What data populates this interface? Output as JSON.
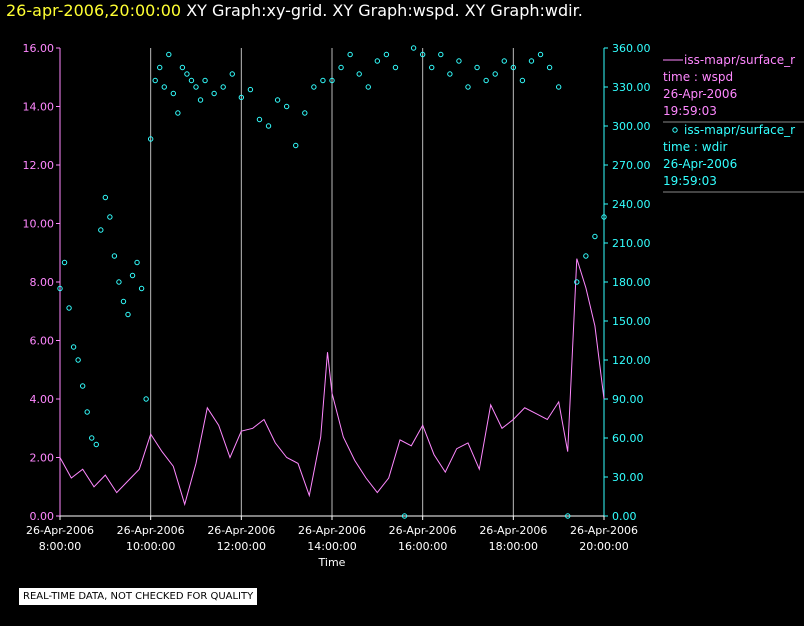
{
  "header": {
    "timestamp": "26-apr-2006,20:00:00",
    "graphs": "XY Graph:xy-grid.  XY Graph:wspd.  XY Graph:wdir."
  },
  "colors": {
    "wspd": "#ff88ff",
    "wdir": "#33ffff",
    "grid": "#bbbbbb",
    "axis_left": "#ff88ff",
    "axis_right": "#33ffff"
  },
  "legend": {
    "wspd": {
      "line1": "iss-mapr/surface_r",
      "line2": "time : wspd",
      "line3": "26-Apr-2006",
      "line4": "19:59:03"
    },
    "wdir": {
      "line1": "iss-mapr/surface_r",
      "line2": "time : wdir",
      "line3": "26-Apr-2006",
      "line4": "19:59:03"
    }
  },
  "footer": {
    "quality_note": "REAL-TIME DATA, NOT CHECKED FOR QUALITY"
  },
  "chart_data": {
    "type": "line",
    "xlabel": "Time",
    "x_ticks": [
      {
        "date": "26-Apr-2006",
        "time": "8:00:00",
        "h": 8
      },
      {
        "date": "26-Apr-2006",
        "time": "10:00:00",
        "h": 10
      },
      {
        "date": "26-Apr-2006",
        "time": "12:00:00",
        "h": 12
      },
      {
        "date": "26-Apr-2006",
        "time": "14:00:00",
        "h": 14
      },
      {
        "date": "26-Apr-2006",
        "time": "16:00:00",
        "h": 16
      },
      {
        "date": "26-Apr-2006",
        "time": "18:00:00",
        "h": 18
      },
      {
        "date": "26-Apr-2006",
        "time": "20:00:00",
        "h": 20
      }
    ],
    "xlim": [
      8,
      20
    ],
    "y_left": {
      "lim": [
        0,
        16
      ],
      "ticks": [
        "0.00",
        "2.00",
        "4.00",
        "6.00",
        "8.00",
        "10.00",
        "12.00",
        "14.00",
        "16.00"
      ]
    },
    "y_right": {
      "lim": [
        0,
        360
      ],
      "ticks": [
        "0.00",
        "30.00",
        "60.00",
        "90.00",
        "120.00",
        "150.00",
        "180.00",
        "210.00",
        "240.00",
        "270.00",
        "300.00",
        "330.00",
        "360.00"
      ]
    },
    "vertical_grid_hours": [
      10,
      12,
      14,
      16,
      18,
      20
    ],
    "series": [
      {
        "name": "wspd",
        "style": "line",
        "axis": "left",
        "x": [
          8.0,
          8.25,
          8.5,
          8.75,
          9.0,
          9.25,
          9.5,
          9.75,
          10.0,
          10.25,
          10.5,
          10.75,
          11.0,
          11.25,
          11.5,
          11.75,
          12.0,
          12.25,
          12.5,
          12.75,
          13.0,
          13.25,
          13.5,
          13.75,
          13.9,
          14.0,
          14.25,
          14.5,
          14.75,
          15.0,
          15.25,
          15.5,
          15.75,
          16.0,
          16.25,
          16.5,
          16.75,
          17.0,
          17.25,
          17.5,
          17.75,
          18.0,
          18.25,
          18.5,
          18.75,
          19.0,
          19.2,
          19.4,
          19.6,
          19.8,
          20.0
        ],
        "y": [
          2.0,
          1.3,
          1.6,
          1.0,
          1.4,
          0.8,
          1.2,
          1.6,
          2.8,
          2.2,
          1.7,
          0.4,
          1.8,
          3.7,
          3.1,
          2.0,
          2.9,
          3.0,
          3.3,
          2.5,
          2.0,
          1.8,
          0.7,
          2.7,
          5.6,
          4.2,
          2.7,
          1.9,
          1.3,
          0.8,
          1.3,
          2.6,
          2.4,
          3.1,
          2.1,
          1.5,
          2.3,
          2.5,
          1.6,
          3.8,
          3.0,
          3.3,
          3.7,
          3.5,
          3.3,
          3.9,
          2.2,
          8.8,
          7.8,
          6.5,
          4.0
        ]
      },
      {
        "name": "wdir",
        "style": "scatter",
        "axis": "right",
        "x": [
          8.0,
          8.1,
          8.2,
          8.3,
          8.4,
          8.5,
          8.6,
          8.7,
          8.8,
          8.9,
          9.0,
          9.1,
          9.2,
          9.3,
          9.4,
          9.5,
          9.6,
          9.7,
          9.8,
          9.9,
          10.0,
          10.1,
          10.2,
          10.3,
          10.4,
          10.5,
          10.6,
          10.7,
          10.8,
          10.9,
          11.0,
          11.1,
          11.2,
          11.4,
          11.6,
          11.8,
          12.0,
          12.2,
          12.4,
          12.6,
          12.8,
          13.0,
          13.2,
          13.4,
          13.6,
          13.8,
          14.0,
          14.2,
          14.4,
          14.6,
          14.8,
          15.0,
          15.2,
          15.4,
          15.6,
          15.8,
          16.0,
          16.2,
          16.4,
          16.6,
          16.8,
          17.0,
          17.2,
          17.4,
          17.6,
          17.8,
          18.0,
          18.2,
          18.4,
          18.6,
          18.8,
          19.0,
          19.2,
          19.4,
          19.6,
          19.8,
          20.0
        ],
        "y": [
          175,
          195,
          160,
          130,
          120,
          100,
          80,
          60,
          55,
          220,
          245,
          230,
          200,
          180,
          165,
          155,
          185,
          195,
          175,
          90,
          290,
          335,
          345,
          330,
          355,
          325,
          310,
          345,
          340,
          335,
          330,
          320,
          335,
          325,
          330,
          340,
          322,
          328,
          305,
          300,
          320,
          315,
          285,
          310,
          330,
          335,
          335,
          345,
          355,
          340,
          330,
          350,
          355,
          345,
          0,
          360,
          355,
          345,
          355,
          340,
          350,
          330,
          345,
          335,
          340,
          350,
          345,
          335,
          350,
          355,
          345,
          330,
          0,
          180,
          200,
          215,
          230
        ]
      }
    ]
  }
}
